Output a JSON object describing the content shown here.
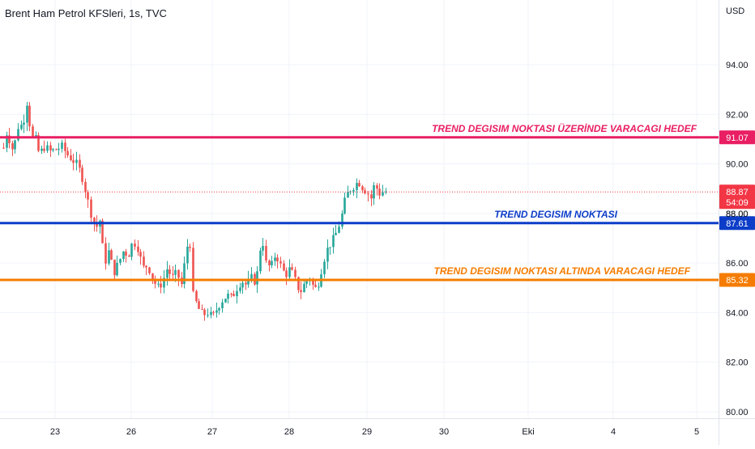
{
  "header": {
    "symbol_title": "Brent Ham Petrol KFSleri, 1s, TVC",
    "currency": "USD"
  },
  "colors": {
    "up": "#26a69a",
    "down": "#ef5350",
    "grid": "#f0f3fa",
    "axis_text": "#131722",
    "pink": "#e91e63",
    "blue": "#0d3dc8",
    "orange": "#f57c00",
    "last_price": "#f23645"
  },
  "chart_data": {
    "type": "candlestick",
    "title": "Brent Ham Petrol KFSleri, 1s, TVC",
    "y_unit": "USD",
    "ylim": [
      79.8,
      95.3
    ],
    "y_ticks": [
      "80.00",
      "82.00",
      "84.00",
      "86.00",
      "88.00",
      "90.00",
      "92.00",
      "94.00"
    ],
    "x_ticks": [
      "23",
      "26",
      "27",
      "28",
      "29",
      "30",
      "Eki",
      "4",
      "5"
    ],
    "grid": true,
    "last_price": {
      "value": "88.87",
      "countdown": "54:09",
      "hidden_tick": "88.00"
    },
    "horizontal_lines": [
      {
        "id": "pink",
        "value": 91.07,
        "label": "91.07",
        "annotation": "TREND DEGISIM NOKTASI ÜZERİNDE VARACAGI HEDEF",
        "color": "#e91e63"
      },
      {
        "id": "blue",
        "value": 87.61,
        "label": "87.61",
        "annotation": "TREND DEGISIM NOKTASI",
        "color": "#0d3dc8"
      },
      {
        "id": "orange",
        "value": 85.32,
        "label": "85.32",
        "annotation": "TREND DEGISIM NOKTASI ALTINDA VARACAGI HEDEF",
        "color": "#f57c00"
      }
    ],
    "price_path": [
      [
        0,
        90.0
      ],
      [
        8,
        91.3
      ],
      [
        16,
        90.5
      ],
      [
        22,
        91.5
      ],
      [
        28,
        91.6
      ],
      [
        34,
        92.7
      ],
      [
        38,
        90.9
      ],
      [
        42,
        91.2
      ],
      [
        48,
        90.4
      ],
      [
        55,
        90.7
      ],
      [
        62,
        90.5
      ],
      [
        70,
        90.6
      ],
      [
        76,
        90.7
      ],
      [
        82,
        90.4
      ],
      [
        88,
        90.2
      ],
      [
        94,
        90.0
      ],
      [
        100,
        89.6
      ],
      [
        106,
        88.8
      ],
      [
        112,
        88.0
      ],
      [
        118,
        87.4
      ],
      [
        124,
        87.8
      ],
      [
        128,
        85.9
      ],
      [
        134,
        86.5
      ],
      [
        140,
        85.6
      ],
      [
        146,
        86.0
      ],
      [
        152,
        86.5
      ],
      [
        158,
        86.3
      ],
      [
        164,
        86.9
      ],
      [
        170,
        86.6
      ],
      [
        176,
        85.8
      ],
      [
        182,
        85.9
      ],
      [
        188,
        85.4
      ],
      [
        194,
        85.0
      ],
      [
        200,
        85.2
      ],
      [
        206,
        85.8
      ],
      [
        212,
        85.4
      ],
      [
        218,
        85.6
      ],
      [
        224,
        85.1
      ],
      [
        230,
        86.6
      ],
      [
        234,
        87.0
      ],
      [
        238,
        84.7
      ],
      [
        244,
        84.2
      ],
      [
        250,
        83.9
      ],
      [
        256,
        84.0
      ],
      [
        262,
        83.8
      ],
      [
        268,
        84.2
      ],
      [
        274,
        84.5
      ],
      [
        280,
        84.7
      ],
      [
        286,
        84.6
      ],
      [
        292,
        85.0
      ],
      [
        298,
        85.3
      ],
      [
        304,
        85.1
      ],
      [
        310,
        85.4
      ],
      [
        316,
        85.2
      ],
      [
        320,
        86.5
      ],
      [
        324,
        86.9
      ],
      [
        328,
        86.0
      ],
      [
        334,
        85.8
      ],
      [
        340,
        86.4
      ],
      [
        346,
        85.9
      ],
      [
        352,
        85.5
      ],
      [
        358,
        85.8
      ],
      [
        364,
        85.3
      ],
      [
        370,
        84.8
      ],
      [
        376,
        85.2
      ],
      [
        382,
        85.4
      ],
      [
        388,
        84.9
      ],
      [
        394,
        85.3
      ],
      [
        398,
        86.0
      ],
      [
        404,
        86.6
      ],
      [
        410,
        86.9
      ],
      [
        416,
        87.3
      ],
      [
        422,
        88.0
      ],
      [
        426,
        88.6
      ],
      [
        430,
        88.9
      ],
      [
        436,
        89.1
      ],
      [
        442,
        89.3
      ],
      [
        448,
        89.0
      ],
      [
        452,
        88.9
      ],
      [
        458,
        88.6
      ],
      [
        462,
        89.2
      ],
      [
        468,
        88.8
      ],
      [
        474,
        88.9
      ],
      [
        478,
        88.87
      ]
    ]
  }
}
